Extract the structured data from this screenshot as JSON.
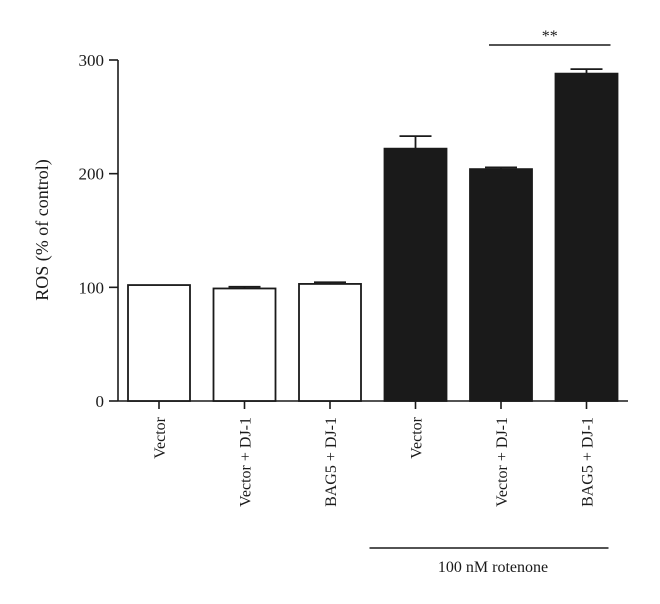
{
  "chart_data": {
    "type": "bar",
    "categories": [
      "Vector",
      "Vector + DJ-1",
      "BAG5 + DJ-1",
      "Vector",
      "Vector + DJ-1",
      "BAG5 + DJ-1"
    ],
    "values": [
      102,
      99,
      103,
      222,
      204,
      288
    ],
    "errors": [
      0,
      1.5,
      1.5,
      11,
      1.5,
      4
    ],
    "fill_colors": [
      "#ffffff",
      "#ffffff",
      "#ffffff",
      "#1a1a1a",
      "#1a1a1a",
      "#1a1a1a"
    ],
    "ylabel": "ROS (% of control)",
    "xlabel": "",
    "ylim": [
      0,
      300
    ],
    "yticks": [
      0,
      100,
      200,
      300
    ],
    "group_label": {
      "text": "100 nM rotenone",
      "start_index": 3,
      "end_index": 5
    },
    "significance": {
      "text": "**",
      "from_index": 4,
      "to_index": 5
    },
    "grid": false,
    "legend": "none"
  }
}
